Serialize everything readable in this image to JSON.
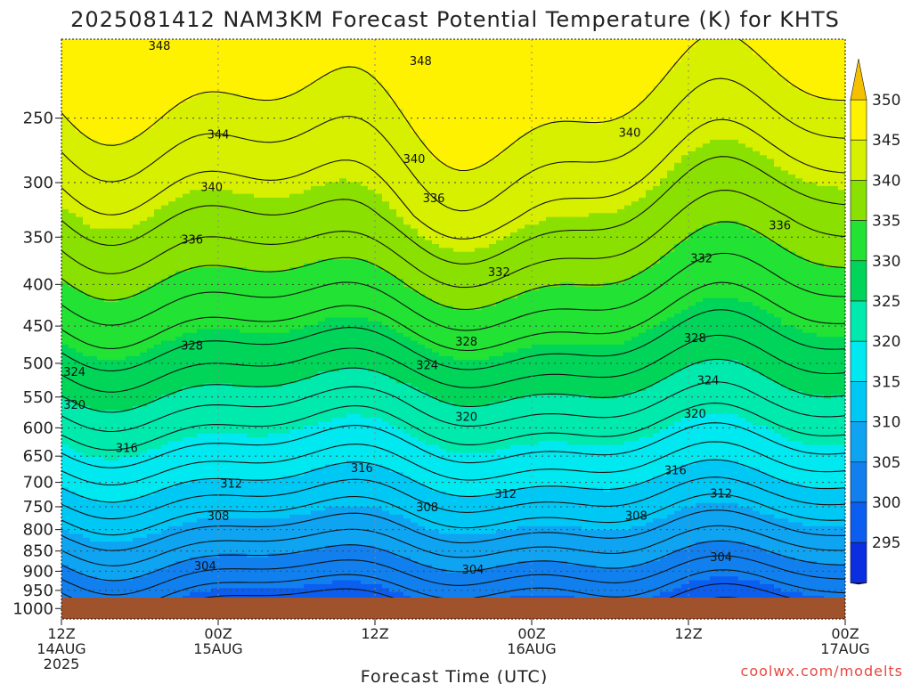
{
  "chart_data": {
    "type": "contour",
    "title": "2025081412 NAM3KM Forecast Potential Temperature (K) for KHTS",
    "xlabel": "Forecast Time (UTC)",
    "credit": "coolwx.com/modelts",
    "x_ticks": [
      {
        "hours": 0,
        "l1": "12Z",
        "l2": "14AUG",
        "l3": "2025"
      },
      {
        "hours": 12,
        "l1": "00Z",
        "l2": "15AUG",
        "l3": ""
      },
      {
        "hours": 24,
        "l1": "12Z",
        "l2": "",
        "l3": ""
      },
      {
        "hours": 36,
        "l1": "00Z",
        "l2": "16AUG",
        "l3": ""
      },
      {
        "hours": 48,
        "l1": "12Z",
        "l2": "",
        "l3": ""
      },
      {
        "hours": 60,
        "l1": "00Z",
        "l2": "17AUG",
        "l3": ""
      }
    ],
    "xlim_hours": [
      0,
      60
    ],
    "y_ticks": [
      250,
      300,
      350,
      400,
      450,
      500,
      550,
      600,
      650,
      700,
      750,
      800,
      850,
      900,
      950,
      1000
    ],
    "ylim_hpa": [
      200,
      1000
    ],
    "yscale": "log",
    "grid": "dotted",
    "colorbar": {
      "ticks": [
        350,
        345,
        340,
        335,
        330,
        325,
        320,
        315,
        310,
        305,
        300,
        295
      ],
      "levels": [
        295,
        300,
        305,
        310,
        315,
        320,
        325,
        330,
        335,
        340,
        345,
        350
      ],
      "colors": [
        "#0a00c8",
        "#0a2ee0",
        "#0b5ef0",
        "#1180ee",
        "#0fa4f2",
        "#00c8f5",
        "#00e9f0",
        "#00eaae",
        "#00d55a",
        "#22e234",
        "#8ae000",
        "#d6f000",
        "#fff200",
        "#f5c000"
      ],
      "extend": "both"
    },
    "ground_color": "#a0522d",
    "contour_labels": [
      {
        "value": "348",
        "hours": 7.5,
        "hpa": 204
      },
      {
        "value": "348",
        "hours": 27.5,
        "hpa": 213
      },
      {
        "value": "344",
        "hours": 12,
        "hpa": 262
      },
      {
        "value": "340",
        "hours": 43.5,
        "hpa": 261
      },
      {
        "value": "340",
        "hours": 27,
        "hpa": 281
      },
      {
        "value": "340",
        "hours": 11.5,
        "hpa": 304
      },
      {
        "value": "336",
        "hours": 28.5,
        "hpa": 314
      },
      {
        "value": "336",
        "hours": 55,
        "hpa": 339
      },
      {
        "value": "336",
        "hours": 10,
        "hpa": 353
      },
      {
        "value": "332",
        "hours": 33.5,
        "hpa": 387
      },
      {
        "value": "332",
        "hours": 49,
        "hpa": 372
      },
      {
        "value": "328",
        "hours": 10,
        "hpa": 476
      },
      {
        "value": "328",
        "hours": 31,
        "hpa": 471
      },
      {
        "value": "328",
        "hours": 48.5,
        "hpa": 466
      },
      {
        "value": "324",
        "hours": 1,
        "hpa": 513
      },
      {
        "value": "324",
        "hours": 28,
        "hpa": 503
      },
      {
        "value": "324",
        "hours": 49.5,
        "hpa": 525
      },
      {
        "value": "320",
        "hours": 1,
        "hpa": 563
      },
      {
        "value": "320",
        "hours": 31,
        "hpa": 582
      },
      {
        "value": "320",
        "hours": 48.5,
        "hpa": 577
      },
      {
        "value": "316",
        "hours": 5,
        "hpa": 636
      },
      {
        "value": "316",
        "hours": 23,
        "hpa": 673
      },
      {
        "value": "316",
        "hours": 47,
        "hpa": 677
      },
      {
        "value": "312",
        "hours": 13,
        "hpa": 703
      },
      {
        "value": "312",
        "hours": 34,
        "hpa": 724
      },
      {
        "value": "312",
        "hours": 50.5,
        "hpa": 723
      },
      {
        "value": "308",
        "hours": 12,
        "hpa": 771
      },
      {
        "value": "308",
        "hours": 28,
        "hpa": 752
      },
      {
        "value": "308",
        "hours": 44,
        "hpa": 770
      },
      {
        "value": "304",
        "hours": 11,
        "hpa": 888
      },
      {
        "value": "304",
        "hours": 31.5,
        "hpa": 897
      },
      {
        "value": "304",
        "hours": 50.5,
        "hpa": 866
      }
    ]
  }
}
